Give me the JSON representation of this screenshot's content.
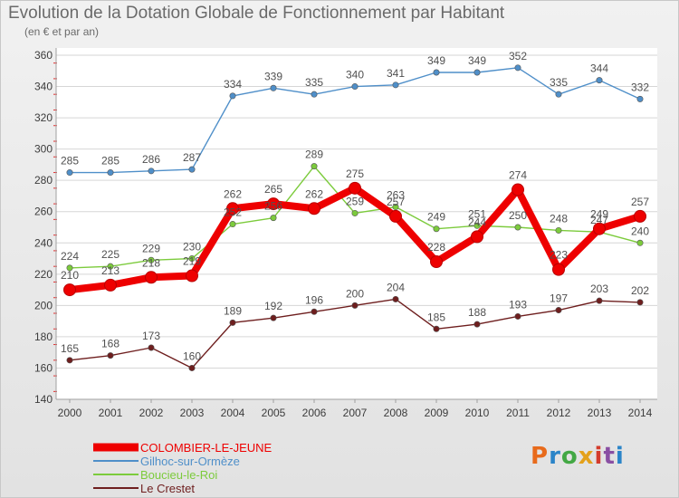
{
  "title": "Evolution de la Dotation Globale de Fonctionnement par Habitant",
  "subtitle": "(en € et par an)",
  "brand": {
    "letters": [
      "P",
      "r",
      "o",
      "x",
      "i",
      "t",
      "i"
    ],
    "colors": [
      "#e86b1c",
      "#2a84c8",
      "#43a844",
      "#e4a11b",
      "#d43c2c",
      "#8a4fa3",
      "#2a84c8"
    ]
  },
  "chart_data": {
    "type": "line",
    "categories": [
      "2000",
      "2001",
      "2002",
      "2003",
      "2004",
      "2005",
      "2006",
      "2007",
      "2008",
      "2009",
      "2010",
      "2011",
      "2012",
      "2013",
      "2014"
    ],
    "yticks": [
      "140",
      "160",
      "180",
      "200",
      "220",
      "240",
      "260",
      "280",
      "300",
      "320",
      "340",
      "360"
    ],
    "ylim": [
      140,
      360
    ],
    "grid": true,
    "legend_position": "bottom-left",
    "series": [
      {
        "name": "COLOMBIER-LE-JEUNE",
        "color": "#ee0000",
        "values": [
          210,
          213,
          218,
          219,
          262,
          265,
          262,
          275,
          257,
          228,
          244,
          274,
          223,
          249,
          257
        ]
      },
      {
        "name": "Gilhoc-sur-Ormèze",
        "color": "#4f8fc9",
        "values": [
          285,
          285,
          286,
          287,
          334,
          339,
          335,
          340,
          341,
          349,
          349,
          352,
          335,
          344,
          332
        ]
      },
      {
        "name": "Boucieu-le-Roi",
        "color": "#7ccb3c",
        "values": [
          224,
          225,
          229,
          230,
          252,
          256,
          289,
          259,
          263,
          249,
          251,
          250,
          248,
          247,
          240
        ]
      },
      {
        "name": "Le Crestet",
        "color": "#6e1e1e",
        "values": [
          165,
          168,
          173,
          160,
          189,
          192,
          196,
          200,
          204,
          185,
          188,
          193,
          197,
          203,
          202
        ]
      }
    ],
    "data_labels": [
      {
        "series": 0,
        "labels": [
          "210",
          "213",
          "218",
          "219",
          "262",
          "265",
          "262",
          "275",
          "257",
          "228",
          "244",
          "274",
          "223",
          "249",
          "257"
        ]
      },
      {
        "series": 1,
        "labels": [
          "285",
          "285",
          "286",
          "287",
          "334",
          "339",
          "335",
          "340",
          "341",
          "349",
          "349",
          "352",
          "335",
          "344",
          "332"
        ]
      },
      {
        "series": 2,
        "labels": [
          "224",
          "225",
          "229",
          "230",
          "252",
          "256",
          "289",
          "259",
          "263",
          "249",
          "251",
          "250",
          "248",
          "247",
          "240"
        ]
      },
      {
        "series": 3,
        "labels": [
          "165",
          "168",
          "173",
          "160",
          "189",
          "192",
          "196",
          "200",
          "204",
          "185",
          "188",
          "193",
          "197",
          "203",
          "202"
        ]
      }
    ]
  }
}
